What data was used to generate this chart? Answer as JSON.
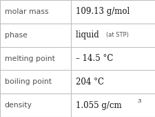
{
  "rows": [
    {
      "label": "molar mass",
      "value": "109.13 g/mol",
      "suffix": null,
      "superscript": null
    },
    {
      "label": "phase",
      "value": "liquid",
      "suffix": "(at STP)",
      "superscript": null
    },
    {
      "label": "melting point",
      "value": "– 14.5 °C",
      "suffix": null,
      "superscript": null
    },
    {
      "label": "boiling point",
      "value": "204 °C",
      "suffix": null,
      "superscript": null
    },
    {
      "label": "density",
      "value": "1.055 g/cm",
      "suffix": null,
      "superscript": "3"
    }
  ],
  "col_split": 0.455,
  "background_color": "#ffffff",
  "line_color": "#c0c0c0",
  "label_color": "#505050",
  "value_color": "#111111",
  "label_fontsize": 7.8,
  "value_fontsize": 8.5,
  "suffix_fontsize": 6.0,
  "super_fontsize": 6.0
}
